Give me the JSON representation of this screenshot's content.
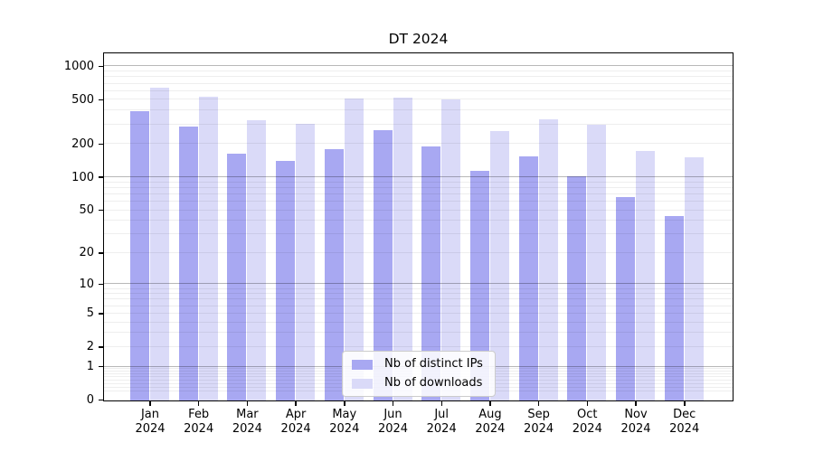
{
  "title": "DT 2024",
  "legend": {
    "items": [
      {
        "label": "Nb of distinct IPs",
        "color": "#a8a8f2"
      },
      {
        "label": "Nb of downloads",
        "color": "#dadaf8"
      }
    ]
  },
  "y_axis": {
    "tick_values": [
      1000,
      500,
      200,
      100,
      50,
      20,
      10,
      5,
      2,
      1,
      0
    ],
    "tick_labels": [
      "1000",
      "500",
      "200",
      "100",
      "50",
      "20",
      "10",
      "5",
      "2",
      "1",
      "0"
    ]
  },
  "x_axis": {
    "tick_labels": [
      [
        "Jan",
        "2024"
      ],
      [
        "Feb",
        "2024"
      ],
      [
        "Mar",
        "2024"
      ],
      [
        "Apr",
        "2024"
      ],
      [
        "May",
        "2024"
      ],
      [
        "Jun",
        "2024"
      ],
      [
        "Jul",
        "2024"
      ],
      [
        "Aug",
        "2024"
      ],
      [
        "Sep",
        "2024"
      ],
      [
        "Oct",
        "2024"
      ],
      [
        "Nov",
        "2024"
      ],
      [
        "Dec",
        "2024"
      ]
    ]
  },
  "chart_data": {
    "type": "bar",
    "title": "DT 2024",
    "categories": [
      "Jan 2024",
      "Feb 2024",
      "Mar 2024",
      "Apr 2024",
      "May 2024",
      "Jun 2024",
      "Jul 2024",
      "Aug 2024",
      "Sep 2024",
      "Oct 2024",
      "Nov 2024",
      "Dec 2024"
    ],
    "series": [
      {
        "name": "Nb of distinct IPs",
        "color": "#a8a8f2",
        "values": [
          400,
          290,
          164,
          142,
          180,
          270,
          190,
          115,
          155,
          102,
          66,
          45
        ]
      },
      {
        "name": "Nb of downloads",
        "color": "#dadaf8",
        "values": [
          650,
          535,
          330,
          305,
          515,
          530,
          510,
          265,
          340,
          300,
          175,
          153
        ]
      }
    ],
    "xlabel": "",
    "ylabel": "",
    "yscale": "log10(value+1), linear-like near 0; 0 at axis bottom",
    "yticks": [
      0,
      1,
      2,
      5,
      10,
      20,
      50,
      100,
      200,
      500,
      1000
    ],
    "ylim": [
      0,
      1300
    ],
    "grid": "horizontal; dark major lines at 1,10,100,1000; faint minor lines at 2-9 mantissas",
    "legend_position": "inside bottom-center",
    "bar_style": "grouped pairs per month, no bar borders"
  }
}
